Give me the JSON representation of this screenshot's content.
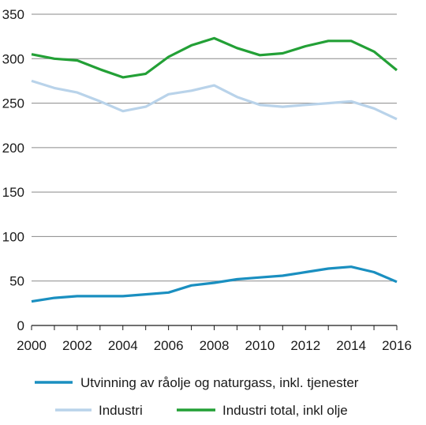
{
  "chart_data": {
    "type": "line",
    "title": "",
    "xlabel": "",
    "ylabel": "",
    "x": [
      2000,
      2001,
      2002,
      2003,
      2004,
      2005,
      2006,
      2007,
      2008,
      2009,
      2010,
      2011,
      2012,
      2013,
      2014,
      2015,
      2016
    ],
    "xticks": [
      "2000",
      "2002",
      "2004",
      "2006",
      "2008",
      "2010",
      "2012",
      "2014",
      "2016"
    ],
    "xlim": [
      2000,
      2016
    ],
    "yticks": [
      "0",
      "50",
      "100",
      "150",
      "200",
      "250",
      "300",
      "350"
    ],
    "ylim": [
      0,
      350
    ],
    "grid": "horizontal",
    "legend_position": "bottom",
    "series": [
      {
        "name": "Utvinning av råolje og naturgass, inkl. tjenester",
        "color": "#1a8fc0",
        "values": [
          27,
          31,
          33,
          33,
          33,
          35,
          37,
          45,
          48,
          52,
          54,
          56,
          60,
          64,
          66,
          60,
          49
        ]
      },
      {
        "name": "Industri",
        "color": "#b9d3ea",
        "values": [
          275,
          267,
          262,
          252,
          241,
          246,
          260,
          264,
          270,
          257,
          248,
          246,
          248,
          250,
          252,
          244,
          232
        ]
      },
      {
        "name": "Industri total, inkl olje",
        "color": "#23a036",
        "values": [
          305,
          300,
          298,
          288,
          279,
          283,
          302,
          315,
          323,
          312,
          304,
          306,
          314,
          320,
          320,
          308,
          287
        ]
      }
    ]
  }
}
